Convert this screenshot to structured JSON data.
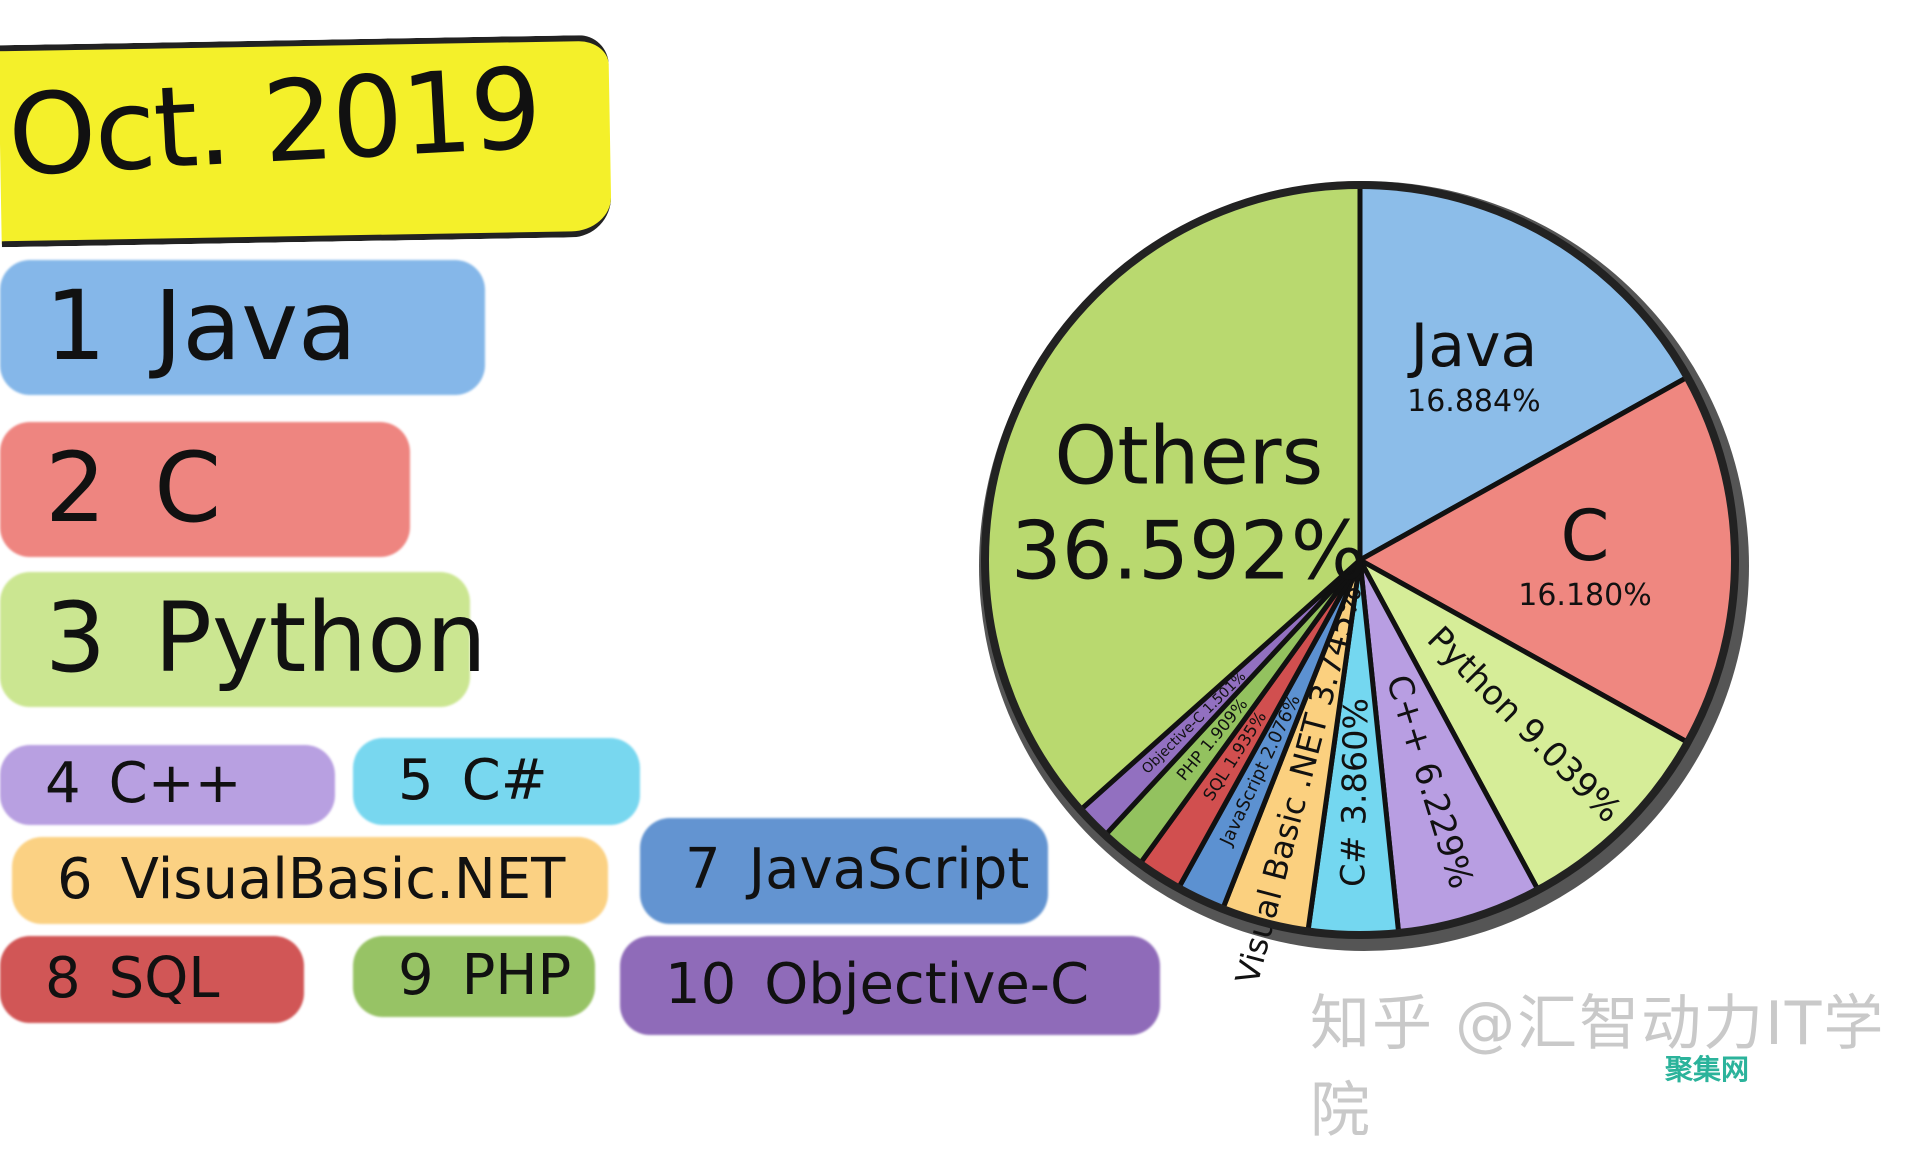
{
  "title": "Oct. 2019",
  "ranking": [
    {
      "rank": "1",
      "name": "Java",
      "color": "#7fb4e8"
    },
    {
      "rank": "2",
      "name": "C",
      "color": "#ee7f7a"
    },
    {
      "rank": "3",
      "name": "Python",
      "color": "#c9e58c"
    },
    {
      "rank": "4",
      "name": "C++",
      "color": "#b59be0"
    },
    {
      "rank": "5",
      "name": "C#",
      "color": "#71d5ef"
    },
    {
      "rank": "6",
      "name": "VisualBasic.NET",
      "color": "#fbcf7d"
    },
    {
      "rank": "7",
      "name": "JavaScript",
      "color": "#5b8fcf"
    },
    {
      "rank": "8",
      "name": "SQL",
      "color": "#cf4d4d"
    },
    {
      "rank": "9",
      "name": "PHP",
      "color": "#92c05d"
    },
    {
      "rank": "10",
      "name": "Objective-C",
      "color": "#8a64b6"
    }
  ],
  "chart_data": {
    "type": "pie",
    "slices": [
      {
        "label": "Java",
        "value": 16.884,
        "text": "16.884%",
        "color": "#8cbde9"
      },
      {
        "label": "C",
        "value": 16.18,
        "text": "16.180%",
        "color": "#ef8780"
      },
      {
        "label": "Python",
        "value": 9.039,
        "text": "9.039%",
        "color": "#d6ed98"
      },
      {
        "label": "C++",
        "value": 6.229,
        "text": "6.229%",
        "color": "#b89ee2"
      },
      {
        "label": "C#",
        "value": 3.86,
        "text": "3.860%",
        "color": "#74d7f0"
      },
      {
        "label": "Visual Basic .NET",
        "value": 3.745,
        "text": "3.745%",
        "color": "#fbd07f"
      },
      {
        "label": "JavaScript",
        "value": 2.076,
        "text": "2.076%",
        "color": "#5c91d1"
      },
      {
        "label": "SQL",
        "value": 1.935,
        "text": "1.935%",
        "color": "#d14f4f"
      },
      {
        "label": "PHP",
        "value": 1.909,
        "text": "1.909%",
        "color": "#93c25f"
      },
      {
        "label": "Objective-C",
        "value": 1.501,
        "text": "1.501%",
        "color": "#9270c0"
      },
      {
        "label": "Others",
        "value": 36.592,
        "text": "36.592%",
        "color": "#b9d96f"
      }
    ],
    "start": "top",
    "direction": "clockwise"
  },
  "watermark": {
    "text": "知乎 @汇智动力IT学院",
    "site": "聚集网"
  }
}
